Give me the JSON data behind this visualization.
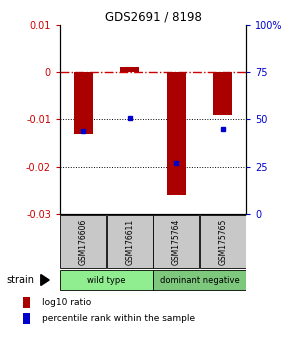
{
  "title": "GDS2691 / 8198",
  "samples": [
    "GSM176606",
    "GSM176611",
    "GSM175764",
    "GSM175765"
  ],
  "groups": [
    {
      "name": "wild type",
      "color": "#90EE90",
      "samples": [
        0,
        1
      ]
    },
    {
      "name": "dominant negative",
      "color": "#7DC87D",
      "samples": [
        2,
        3
      ]
    }
  ],
  "log10_ratio": [
    -0.013,
    0.001,
    -0.026,
    -0.009
  ],
  "percentile_rank": [
    44,
    51,
    27,
    45
  ],
  "ylim_left": [
    -0.03,
    0.01
  ],
  "ylim_right": [
    0,
    100
  ],
  "yticks_left": [
    -0.03,
    -0.02,
    -0.01,
    0,
    0.01
  ],
  "yticks_right": [
    0,
    25,
    50,
    75,
    100
  ],
  "bar_color": "#AA0000",
  "dot_color": "#0000CC",
  "zero_line_color": "#CC0000",
  "grid_color": "#000000",
  "strain_label": "strain",
  "legend_ratio_label": "log10 ratio",
  "legend_rank_label": "percentile rank within the sample",
  "sample_box_color": "#C8C8C8",
  "left_tick_color": "#CC0000",
  "right_tick_color": "#0000CC"
}
